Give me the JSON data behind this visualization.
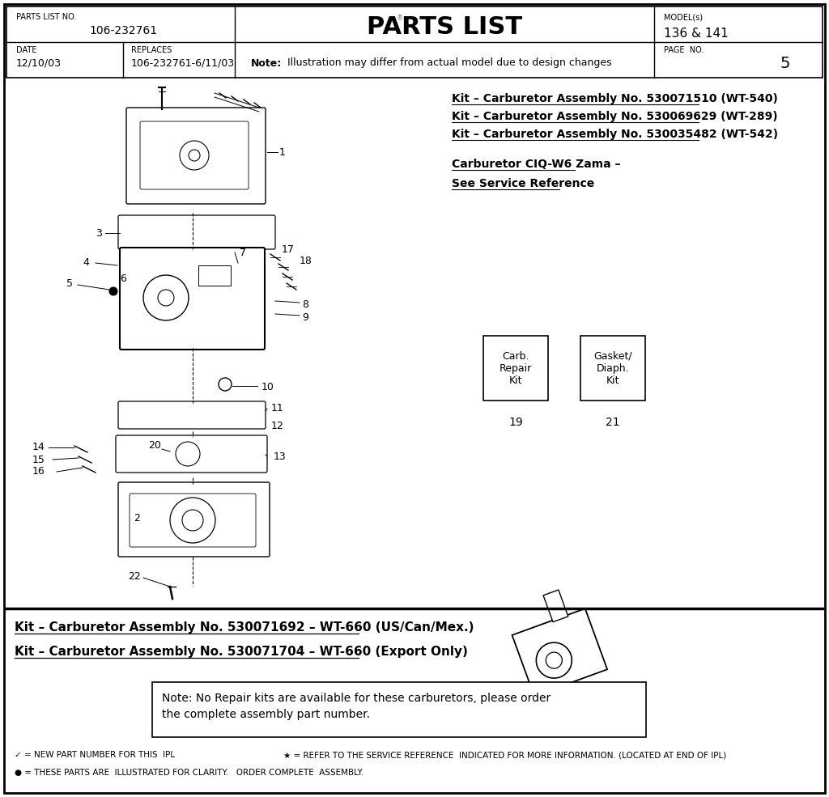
{
  "bg_color": "#ffffff",
  "header": {
    "parts_list_no_label": "PARTS LIST NO.",
    "parts_list_no": "106-232761",
    "title": "PARTS LIST",
    "model_label": "MODEL(s)",
    "model": "136 & 141",
    "date_label": "DATE",
    "date": "12/10/03",
    "replaces_label": "REPLACES",
    "replaces": "106-232761-6/11/03",
    "note": "Illustration may differ from actual model due to design changes",
    "page_label": "PAGE  NO.",
    "page": "5"
  },
  "kit_lines_upper": [
    "Kit – Carburetor Assembly No. 530071510 (WT-540)",
    "Kit – Carburetor Assembly No. 530069629 (WT-289)",
    "Kit – Carburetor Assembly No. 530035482 (WT-542)"
  ],
  "carb_ref_line1": "Carburetor CIQ-W6 Zama –",
  "carb_ref_line2": "See Service Reference",
  "kit_labels_box1": "Carb.\nRepair\nKit",
  "kit_labels_box2": "Gasket/\nDiaph.\nKit",
  "kit_num1": "19",
  "kit_num2": "21",
  "kit_lines_lower": [
    "Kit – Carburetor Assembly No. 530071692 – WT-660 (US/Can/Mex.)",
    "Kit – Carburetor Assembly No. 530071704 – WT-660 (Export Only)"
  ],
  "note_box_line1": "Note: No Repair kits are available for these carburetors, please order",
  "note_box_line2": "the complete assembly part number.",
  "legend1": "✓ = NEW PART NUMBER FOR THIS  IPL",
  "legend2": "★ = REFER TO THE SERVICE REFERENCE  INDICATED FOR MORE INFORMATION. (LOCATED AT END OF IPL)",
  "legend3": "● = THESE PARTS ARE  ILLUSTRATED FOR CLARITY.   ORDER COMPLETE  ASSEMBLY."
}
